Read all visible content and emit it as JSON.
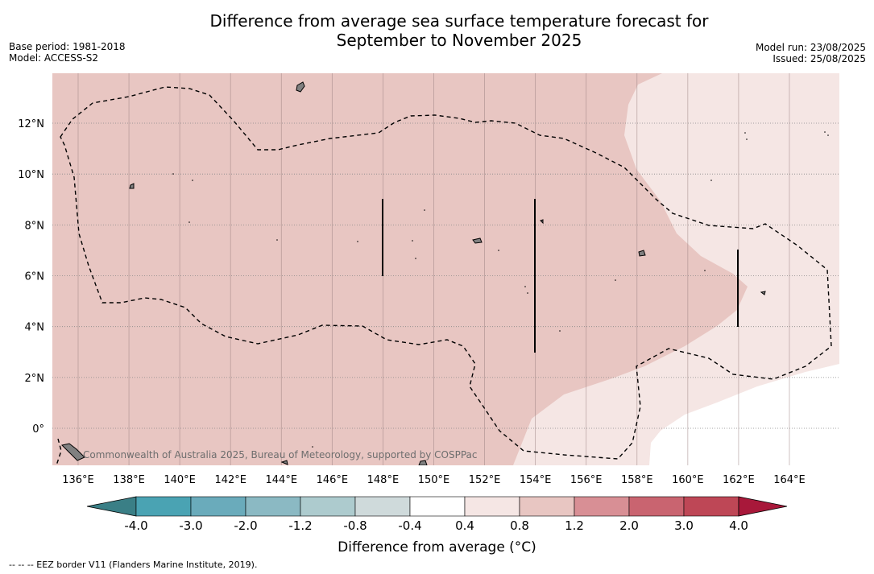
{
  "title_line1": "Difference from average sea surface temperature forecast for",
  "title_line2": "September to November 2025",
  "base_period": "Base period: 1981-2018",
  "model": "Model: ACCESS-S2",
  "model_run": "Model run: 23/08/2025",
  "issued": "Issued: 25/08/2025",
  "copyright": "Commonwealth of Australia 2025, Bureau of Meteorology, supported by COSPPac",
  "lon_labels": [
    "136°E",
    "138°E",
    "140°E",
    "142°E",
    "144°E",
    "146°E",
    "148°E",
    "150°E",
    "152°E",
    "154°E",
    "156°E",
    "158°E",
    "160°E",
    "162°E",
    "164°E"
  ],
  "lat_labels": [
    "12°N",
    "10°N",
    "8°N",
    "6°N",
    "4°N",
    "2°N",
    "0°"
  ],
  "legend": {
    "label": "Difference from average (°C)",
    "ticks": [
      "-4.0",
      "-3.0",
      "-2.0",
      "-1.2",
      "-0.8",
      "-0.4",
      "0.4",
      "0.8",
      "1.2",
      "2.0",
      "3.0",
      "4.0"
    ],
    "colors": [
      "#3a7f86",
      "#4aa3b3",
      "#6aabbb",
      "#8bb9c3",
      "#adcbce",
      "#cfdadb",
      "#ffffff",
      "#f5e6e4",
      "#e8c6c2",
      "#d88f95",
      "#c96470",
      "#be4756",
      "#a8183a"
    ]
  },
  "footnote": "-- -- -- EEZ border V11 (Flanders Marine Institute, 2019)."
}
